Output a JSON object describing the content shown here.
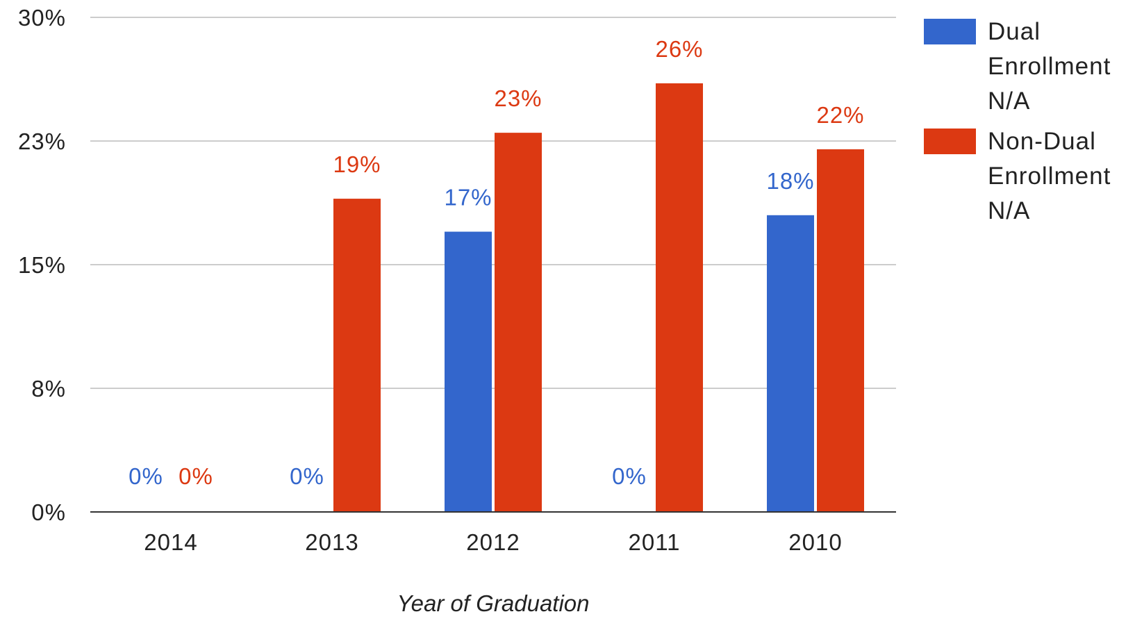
{
  "chart_data": {
    "type": "bar",
    "categories": [
      "2014",
      "2013",
      "2012",
      "2011",
      "2010"
    ],
    "series": [
      {
        "name": "Dual Enrollment N/A",
        "legend_lines": [
          "Dual",
          "Enrollment",
          "N/A"
        ],
        "color": "#3366cc",
        "values": [
          0,
          0,
          17,
          0,
          18
        ],
        "labels": [
          "0%",
          "0%",
          "17%",
          "0%",
          "18%"
        ]
      },
      {
        "name": "Non-Dual Enrollment N/A",
        "legend_lines": [
          "Non-Dual",
          "Enrollment",
          "N/A"
        ],
        "color": "#dc3912",
        "values": [
          0,
          19,
          23,
          26,
          22
        ],
        "labels": [
          "0%",
          "19%",
          "23%",
          "26%",
          "22%"
        ]
      }
    ],
    "xlabel": "Year of Graduation",
    "ylabel": "",
    "ylim": [
      0,
      30
    ],
    "yticks": [
      {
        "value": 0,
        "label": "0%"
      },
      {
        "value": 7.5,
        "label": "8%"
      },
      {
        "value": 15,
        "label": "15%"
      },
      {
        "value": 22.5,
        "label": "23%"
      },
      {
        "value": 30,
        "label": "30%"
      }
    ],
    "grid": true,
    "legend_position": "right"
  }
}
